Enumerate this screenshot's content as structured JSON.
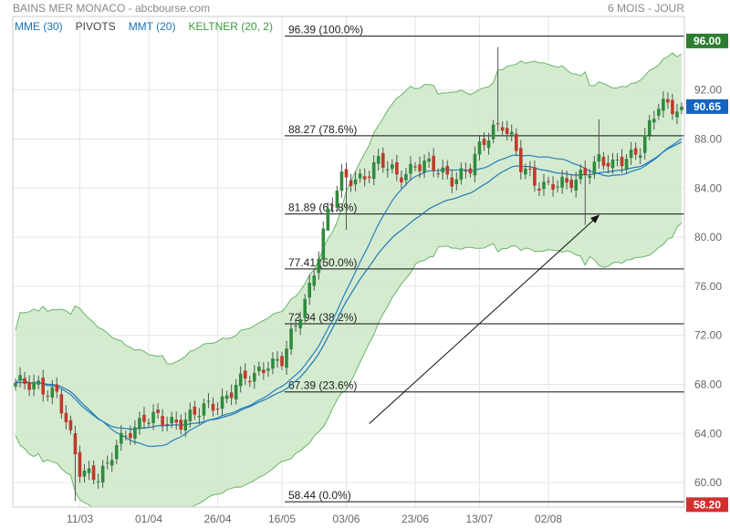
{
  "header": {
    "title": "BAINS MER MONACO - abcbourse.com",
    "period": "6 MOIS - JOUR"
  },
  "legend": [
    {
      "label": "MME (30)",
      "color": "#1a73b8"
    },
    {
      "label": "PIVOTS",
      "color": "#444444"
    },
    {
      "label": "MMT (20)",
      "color": "#1a73b8"
    },
    {
      "label": "KELTNER (20, 2)",
      "color": "#3a9a3a"
    }
  ],
  "colors": {
    "up_candle": "#2e8b3e",
    "down_candle": "#c0392b",
    "ma_line": "#1f77b4",
    "band_fill": "#cde8c8",
    "band_line": "#6ab46a",
    "grid": "#e6e6e6",
    "last_price_tag": "#1565c0",
    "high_tag": "#2e7d32",
    "low_tag": "#d32f2f"
  },
  "chart_data": {
    "type": "candlestick",
    "title": "BAINS MER MONACO",
    "ylim": [
      58,
      98
    ],
    "y_ticks": [
      "60.00",
      "64.00",
      "68.00",
      "72.00",
      "76.00",
      "80.00",
      "84.00",
      "88.00",
      "92.00"
    ],
    "x_ticks": [
      "11/03",
      "01/04",
      "26/04",
      "16/05",
      "03/06",
      "23/06",
      "13/07",
      "02/08"
    ],
    "grid": true,
    "price_tags": [
      {
        "label": "96.00",
        "value": 96.0,
        "kind": "high"
      },
      {
        "label": "90.65",
        "value": 90.65,
        "kind": "last"
      },
      {
        "label": "58.20",
        "value": 58.2,
        "kind": "low"
      }
    ],
    "fibonacci": [
      {
        "label": "96.39  (100.0%)",
        "value": 96.39
      },
      {
        "label": "88.27  (78.6%)",
        "value": 88.27
      },
      {
        "label": "81.89  (61.8%)",
        "value": 81.89
      },
      {
        "label": "77.41  (50.0%)",
        "value": 77.41
      },
      {
        "label": "72.94  (38.2%)",
        "value": 72.94
      },
      {
        "label": "67.39  (23.6%)",
        "value": 67.39
      },
      {
        "label": "58.44  (0.0%)",
        "value": 58.44
      }
    ],
    "keypoints": [
      [
        0,
        67.8
      ],
      [
        5,
        68.2
      ],
      [
        9,
        67.0
      ],
      [
        12,
        63.5
      ],
      [
        14,
        61.2
      ],
      [
        16,
        61.0
      ],
      [
        18,
        60.5
      ],
      [
        20,
        61.0
      ],
      [
        22,
        63.0
      ],
      [
        25,
        64.5
      ],
      [
        28,
        65.2
      ],
      [
        32,
        64.9
      ],
      [
        36,
        65.2
      ],
      [
        40,
        65.6
      ],
      [
        44,
        66.5
      ],
      [
        48,
        68.0
      ],
      [
        52,
        68.5
      ],
      [
        55,
        70.0
      ],
      [
        58,
        70.0
      ],
      [
        61,
        72.5
      ],
      [
        64,
        76.0
      ],
      [
        66,
        79.0
      ],
      [
        68,
        82.0
      ],
      [
        71,
        84.5
      ],
      [
        75,
        85.0
      ],
      [
        79,
        86.0
      ],
      [
        83,
        85.0
      ],
      [
        87,
        86.0
      ],
      [
        91,
        85.5
      ],
      [
        95,
        85.0
      ],
      [
        99,
        85.5
      ],
      [
        101,
        87.0
      ],
      [
        104,
        89.0
      ],
      [
        106,
        89.5
      ],
      [
        108,
        88.0
      ],
      [
        110,
        85.5
      ],
      [
        113,
        84.5
      ],
      [
        117,
        84.5
      ],
      [
        120,
        84.0
      ],
      [
        122,
        84.5
      ],
      [
        124,
        85.5
      ],
      [
        127,
        86.5
      ],
      [
        130,
        85.5
      ],
      [
        133,
        86.5
      ],
      [
        136,
        87.5
      ],
      [
        138,
        89.0
      ],
      [
        140,
        90.5
      ],
      [
        143,
        90.6
      ],
      [
        145,
        90.65
      ]
    ],
    "series": [
      {
        "name": "MME (30)",
        "kind": "ema",
        "period": 30
      },
      {
        "name": "MMT (20)",
        "kind": "sma",
        "period": 20
      },
      {
        "name": "KELTNER (20, 2)",
        "kind": "keltner",
        "period": 20,
        "multiplier": 2
      }
    ],
    "trend_arrow": {
      "from": {
        "index": 77,
        "value": 64.8
      },
      "to": {
        "index": 127,
        "value": 81.8
      }
    }
  }
}
